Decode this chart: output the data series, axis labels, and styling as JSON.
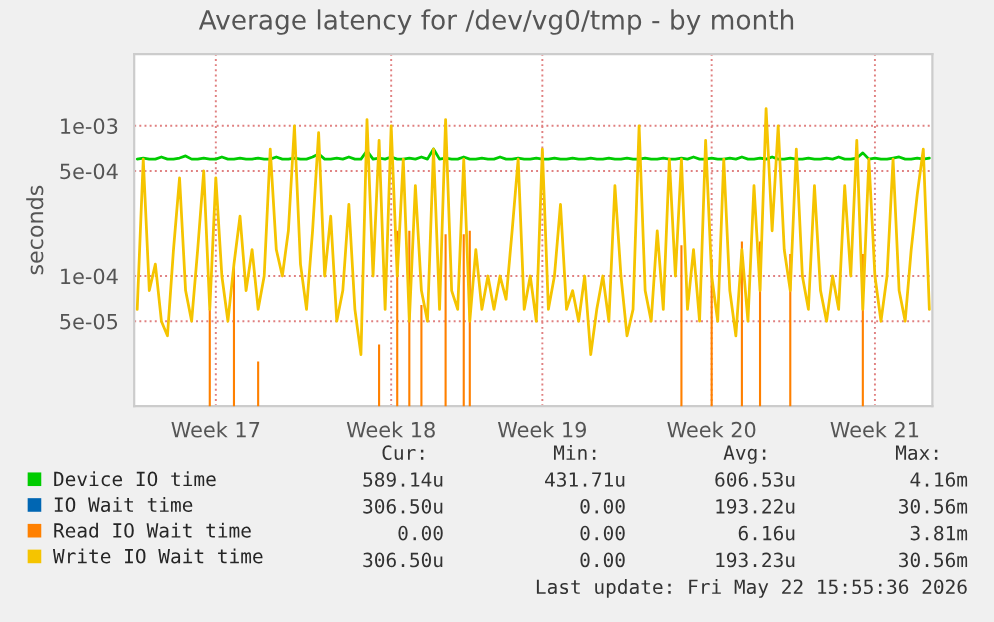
{
  "chart_data": {
    "type": "line",
    "title": "Average latency for /dev/vg0/tmp - by month",
    "ylabel": "seconds",
    "log": true,
    "ylim": [
      1.36e-05,
      0.003
    ],
    "yticks": [
      {
        "value": 5e-05,
        "label": "5e-05"
      },
      {
        "value": 0.0001,
        "label": "1e-04"
      },
      {
        "value": 0.0005,
        "label": "5e-04"
      },
      {
        "value": 0.001,
        "label": "1e-03"
      }
    ],
    "categories": [
      null,
      null,
      null,
      null,
      null,
      null,
      null,
      null,
      null,
      null,
      null,
      null,
      null,
      "Week 17",
      null,
      null,
      null,
      null,
      null,
      null,
      null,
      null,
      null,
      null,
      null,
      null,
      null,
      null,
      null,
      null,
      null,
      null,
      null,
      null,
      null,
      null,
      null,
      null,
      null,
      null,
      null,
      null,
      "Week 18",
      null,
      null,
      null,
      null,
      null,
      null,
      null,
      null,
      null,
      null,
      null,
      null,
      null,
      null,
      null,
      null,
      null,
      null,
      null,
      null,
      null,
      null,
      null,
      null,
      "Week 19",
      null,
      null,
      null,
      null,
      null,
      null,
      null,
      null,
      null,
      null,
      null,
      null,
      null,
      null,
      null,
      null,
      null,
      null,
      null,
      null,
      null,
      null,
      null,
      null,
      null,
      null,
      null,
      "Week 20",
      null,
      null,
      null,
      null,
      null,
      null,
      null,
      null,
      null,
      null,
      null,
      null,
      null,
      null,
      null,
      null,
      null,
      null,
      null,
      null,
      null,
      null,
      null,
      null,
      null,
      null,
      "Week 21",
      null,
      null,
      null,
      null,
      null,
      null,
      null,
      null,
      null
    ],
    "grid": true,
    "legend": "bottom",
    "marker": "none",
    "line_style": "solid",
    "series": [
      {
        "name": "Device IO time",
        "color": "#00cc00",
        "values": [
          0.0006,
          0.00061,
          0.0006,
          0.0006,
          0.00062,
          0.0006,
          0.0006,
          0.00061,
          0.00063,
          0.0006,
          0.0006,
          0.00061,
          0.0006,
          0.0006,
          0.00062,
          0.0006,
          0.0006,
          0.00061,
          0.0006,
          0.0006,
          0.00061,
          0.0006,
          0.0006,
          0.00062,
          0.0006,
          0.0006,
          0.00061,
          0.0006,
          0.0006,
          0.00062,
          0.00065,
          0.0006,
          0.0006,
          0.00061,
          0.0006,
          0.00062,
          0.0006,
          0.0006,
          0.00068,
          0.0006,
          0.00061,
          0.0006,
          0.00062,
          0.0006,
          0.0006,
          0.00061,
          0.0006,
          0.00062,
          0.0006,
          0.0007,
          0.0006,
          0.00061,
          0.0006,
          0.0006,
          0.00062,
          0.0006,
          0.0006,
          0.00061,
          0.0006,
          0.0006,
          0.00062,
          0.0006,
          0.0006,
          0.00061,
          0.0006,
          0.0006,
          0.00061,
          0.0006,
          0.0006,
          0.00061,
          0.0006,
          0.0006,
          0.00061,
          0.0006,
          0.0006,
          0.00061,
          0.0006,
          0.0006,
          0.00061,
          0.0006,
          0.0006,
          0.00061,
          0.0006,
          0.0006,
          0.00061,
          0.0006,
          0.0006,
          0.00061,
          0.0006,
          0.0006,
          0.00061,
          0.0006,
          0.00062,
          0.0006,
          0.0006,
          0.00061,
          0.0006,
          0.0006,
          0.00061,
          0.0006,
          0.00062,
          0.0006,
          0.0006,
          0.00061,
          0.0006,
          0.00062,
          0.0006,
          0.0006,
          0.00061,
          0.0006,
          0.0006,
          0.00061,
          0.0006,
          0.0006,
          0.00061,
          0.0006,
          0.00062,
          0.0006,
          0.0006,
          0.00061,
          0.00066,
          0.0006,
          0.00061,
          0.0006,
          0.0006,
          0.00061,
          0.00062,
          0.0006,
          0.0006,
          0.00061,
          0.0006,
          0.00061
        ]
      },
      {
        "name": "IO Wait time",
        "color": "#0066b3",
        "values": [
          null,
          null,
          null,
          null,
          null,
          null,
          null,
          null,
          null,
          null,
          null,
          null,
          null,
          null,
          null,
          null,
          null,
          null,
          null,
          null,
          null,
          null,
          null,
          null,
          null,
          null,
          null,
          null,
          null,
          null,
          null,
          null,
          null,
          null,
          null,
          null,
          null,
          null,
          null,
          null,
          null,
          null,
          null,
          null,
          null,
          null,
          null,
          null,
          null,
          null,
          null,
          null,
          null,
          null,
          null,
          null,
          null,
          null,
          null,
          null,
          null,
          null,
          null,
          null,
          null,
          null,
          null,
          null,
          null,
          null,
          null,
          null,
          null,
          null,
          null,
          null,
          null,
          null,
          null,
          null,
          null,
          null,
          null,
          null,
          null,
          null,
          null,
          null,
          null,
          null,
          null,
          null,
          null,
          null,
          null,
          null,
          null,
          null,
          null,
          null,
          null,
          null,
          null,
          null,
          null,
          null,
          null,
          null,
          null,
          null,
          null,
          null,
          null,
          null,
          null,
          null,
          null,
          null,
          null,
          null,
          null,
          null,
          null,
          null,
          null,
          null,
          null,
          null,
          null,
          null,
          null,
          null
        ]
      },
      {
        "name": "Read IO Wait time",
        "type": "bar",
        "color": "#ff8000",
        "values": [
          null,
          null,
          null,
          null,
          null,
          null,
          null,
          null,
          null,
          null,
          null,
          null,
          6e-05,
          null,
          null,
          null,
          0.000115,
          null,
          null,
          null,
          2.7e-05,
          null,
          null,
          null,
          null,
          null,
          null,
          null,
          null,
          null,
          null,
          null,
          null,
          null,
          null,
          null,
          null,
          null,
          null,
          null,
          3.5e-05,
          null,
          null,
          0.0002,
          null,
          0.0002,
          null,
          6.4e-05,
          null,
          null,
          null,
          0.00019,
          null,
          null,
          0.00019,
          0.0002,
          null,
          null,
          null,
          null,
          null,
          null,
          null,
          null,
          null,
          null,
          null,
          null,
          null,
          null,
          null,
          null,
          null,
          null,
          null,
          null,
          null,
          null,
          null,
          null,
          null,
          null,
          null,
          null,
          null,
          null,
          null,
          null,
          null,
          null,
          0.00016,
          null,
          null,
          null,
          null,
          0.00013,
          null,
          null,
          null,
          null,
          0.00017,
          null,
          null,
          0.00017,
          null,
          null,
          null,
          null,
          0.00014,
          null,
          null,
          null,
          null,
          null,
          null,
          null,
          null,
          null,
          null,
          null,
          0.00014,
          null,
          null,
          null,
          null,
          null,
          null,
          null,
          null,
          null,
          null,
          null
        ]
      },
      {
        "name": "Write IO Wait time",
        "color": "#f5c400",
        "values": [
          6e-05,
          0.0006,
          8e-05,
          0.00012,
          5e-05,
          4e-05,
          0.00015,
          0.00045,
          8e-05,
          5e-05,
          0.00015,
          0.0005,
          6e-05,
          0.00045,
          0.0001,
          5e-05,
          0.00012,
          0.00025,
          8e-05,
          0.00015,
          6e-05,
          0.0001,
          0.0007,
          0.00015,
          0.0001,
          0.0002,
          0.001,
          0.00012,
          6e-05,
          0.0002,
          0.0009,
          0.0001,
          0.00025,
          5e-05,
          8e-05,
          0.0003,
          6e-05,
          3e-05,
          0.0011,
          0.0001,
          0.0008,
          6e-05,
          0.001,
          0.0001,
          0.0006,
          5e-05,
          0.0004,
          8e-05,
          5e-05,
          0.0007,
          6e-05,
          0.0011,
          8e-05,
          6e-05,
          0.0006,
          5e-05,
          0.00015,
          6e-05,
          0.0001,
          6e-05,
          0.0001,
          7e-05,
          0.0002,
          0.0006,
          6e-05,
          0.0001,
          5e-05,
          0.0007,
          6e-05,
          0.0001,
          0.0003,
          6e-05,
          8e-05,
          5e-05,
          0.0001,
          3e-05,
          6e-05,
          0.0001,
          5e-05,
          0.0004,
          0.0001,
          4e-05,
          6e-05,
          0.001,
          8e-05,
          5e-05,
          0.0002,
          6e-05,
          0.0006,
          0.0001,
          0.0006,
          6e-05,
          0.00015,
          5e-05,
          0.0008,
          0.0001,
          5e-05,
          0.0006,
          8e-05,
          4e-05,
          0.00015,
          5e-05,
          0.0004,
          8e-05,
          0.0013,
          0.0002,
          0.001,
          0.00015,
          8e-05,
          0.0007,
          0.0001,
          6e-05,
          0.0004,
          8e-05,
          5e-05,
          0.0001,
          6e-05,
          0.0004,
          0.0001,
          0.0008,
          6e-05,
          0.0006,
          0.0001,
          5e-05,
          0.0001,
          0.0006,
          8e-05,
          5e-05,
          0.00015,
          0.00035,
          0.0007,
          6e-05
        ]
      }
    ],
    "annotations": [
      "Cur:",
      "Min:",
      "Avg:",
      "Max:",
      "589.14u",
      "431.71u",
      "606.53u",
      "4.16m",
      "306.50u",
      "0.00",
      "193.22u",
      "30.56m",
      "0.00",
      "0.00",
      "6.16u",
      "3.81m",
      "306.50u",
      "0.00",
      "193.23u",
      "30.56m",
      "Last update: Fri May 22 15:55:36 2026"
    ]
  }
}
